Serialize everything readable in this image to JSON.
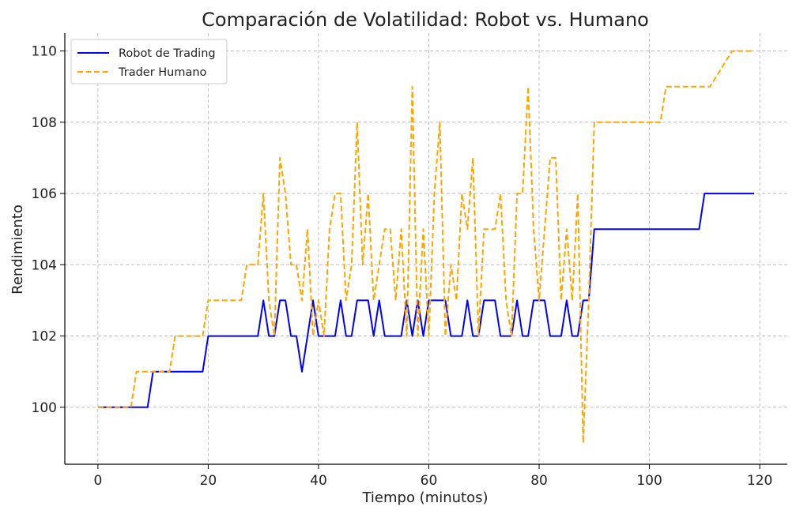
{
  "chart_data": {
    "type": "line",
    "title": "Comparación de Volatilidad: Robot vs. Humano",
    "xlabel": "Tiempo (minutos)",
    "ylabel": "Rendimiento",
    "xlim": [
      -6,
      125
    ],
    "ylim": [
      98.4,
      110.5
    ],
    "xticks": [
      0,
      20,
      40,
      60,
      80,
      100,
      120
    ],
    "yticks": [
      100,
      102,
      104,
      106,
      108,
      110
    ],
    "grid": true,
    "legend_position": "top-left",
    "series": [
      {
        "name": "Robot de Trading",
        "color": "#0000ff",
        "style": "solid",
        "points": [
          [
            0,
            100
          ],
          [
            9,
            100
          ],
          [
            10,
            101
          ],
          [
            19,
            101
          ],
          [
            20,
            102
          ],
          [
            29,
            102
          ],
          [
            30,
            103
          ],
          [
            31,
            102
          ],
          [
            32,
            102
          ],
          [
            33,
            103
          ],
          [
            34,
            103
          ],
          [
            35,
            102
          ],
          [
            36,
            102
          ],
          [
            37,
            101
          ],
          [
            38,
            102
          ],
          [
            39,
            103
          ],
          [
            40,
            102
          ],
          [
            43,
            102
          ],
          [
            44,
            103
          ],
          [
            45,
            102
          ],
          [
            46,
            102
          ],
          [
            47,
            103
          ],
          [
            49,
            103
          ],
          [
            50,
            102
          ],
          [
            51,
            103
          ],
          [
            52,
            102
          ],
          [
            55,
            102
          ],
          [
            56,
            103
          ],
          [
            57,
            102
          ],
          [
            58,
            103
          ],
          [
            59,
            102
          ],
          [
            60,
            103
          ],
          [
            63,
            103
          ],
          [
            64,
            102
          ],
          [
            66,
            102
          ],
          [
            67,
            103
          ],
          [
            68,
            102
          ],
          [
            69,
            102
          ],
          [
            70,
            103
          ],
          [
            72,
            103
          ],
          [
            73,
            102
          ],
          [
            75,
            102
          ],
          [
            76,
            103
          ],
          [
            77,
            102
          ],
          [
            78,
            102
          ],
          [
            79,
            103
          ],
          [
            81,
            103
          ],
          [
            82,
            102
          ],
          [
            84,
            102
          ],
          [
            85,
            103
          ],
          [
            86,
            102
          ],
          [
            87,
            102
          ],
          [
            88,
            103
          ],
          [
            89,
            103
          ],
          [
            90,
            105
          ],
          [
            109,
            105
          ],
          [
            110,
            106
          ],
          [
            119,
            106
          ]
        ]
      },
      {
        "name": "Trader Humano",
        "color": "#ffa500",
        "style": "dashed",
        "points": [
          [
            0,
            100
          ],
          [
            6,
            100
          ],
          [
            7,
            101
          ],
          [
            13,
            101
          ],
          [
            14,
            102
          ],
          [
            19,
            102
          ],
          [
            20,
            103
          ],
          [
            26,
            103
          ],
          [
            27,
            104
          ],
          [
            29,
            104
          ],
          [
            30,
            106
          ],
          [
            31,
            103
          ],
          [
            32,
            102
          ],
          [
            33,
            107
          ],
          [
            34,
            106
          ],
          [
            35,
            104
          ],
          [
            36,
            104
          ],
          [
            37,
            103
          ],
          [
            38,
            105
          ],
          [
            39,
            102
          ],
          [
            40,
            103
          ],
          [
            41,
            102
          ],
          [
            42,
            105
          ],
          [
            43,
            106
          ],
          [
            44,
            106
          ],
          [
            45,
            103
          ],
          [
            46,
            104
          ],
          [
            47,
            108
          ],
          [
            48,
            104
          ],
          [
            49,
            106
          ],
          [
            50,
            103
          ],
          [
            51,
            104
          ],
          [
            52,
            105
          ],
          [
            53,
            105
          ],
          [
            54,
            103
          ],
          [
            55,
            105
          ],
          [
            56,
            102
          ],
          [
            57,
            109
          ],
          [
            58,
            102
          ],
          [
            59,
            105
          ],
          [
            60,
            102
          ],
          [
            61,
            106
          ],
          [
            62,
            108
          ],
          [
            63,
            102
          ],
          [
            64,
            104
          ],
          [
            65,
            103
          ],
          [
            66,
            106
          ],
          [
            67,
            105
          ],
          [
            68,
            107
          ],
          [
            69,
            102
          ],
          [
            70,
            105
          ],
          [
            72,
            105
          ],
          [
            73,
            106
          ],
          [
            74,
            103
          ],
          [
            75,
            102
          ],
          [
            76,
            106
          ],
          [
            77,
            106
          ],
          [
            78,
            109
          ],
          [
            79,
            105
          ],
          [
            80,
            103
          ],
          [
            81,
            105
          ],
          [
            82,
            107
          ],
          [
            83,
            107
          ],
          [
            84,
            103
          ],
          [
            85,
            105
          ],
          [
            86,
            103
          ],
          [
            87,
            106
          ],
          [
            88,
            99
          ],
          [
            89,
            103
          ],
          [
            90,
            108
          ],
          [
            102,
            108
          ],
          [
            103,
            109
          ],
          [
            110,
            109
          ],
          [
            111,
            109
          ],
          [
            115,
            110
          ],
          [
            119,
            110
          ]
        ]
      }
    ]
  }
}
